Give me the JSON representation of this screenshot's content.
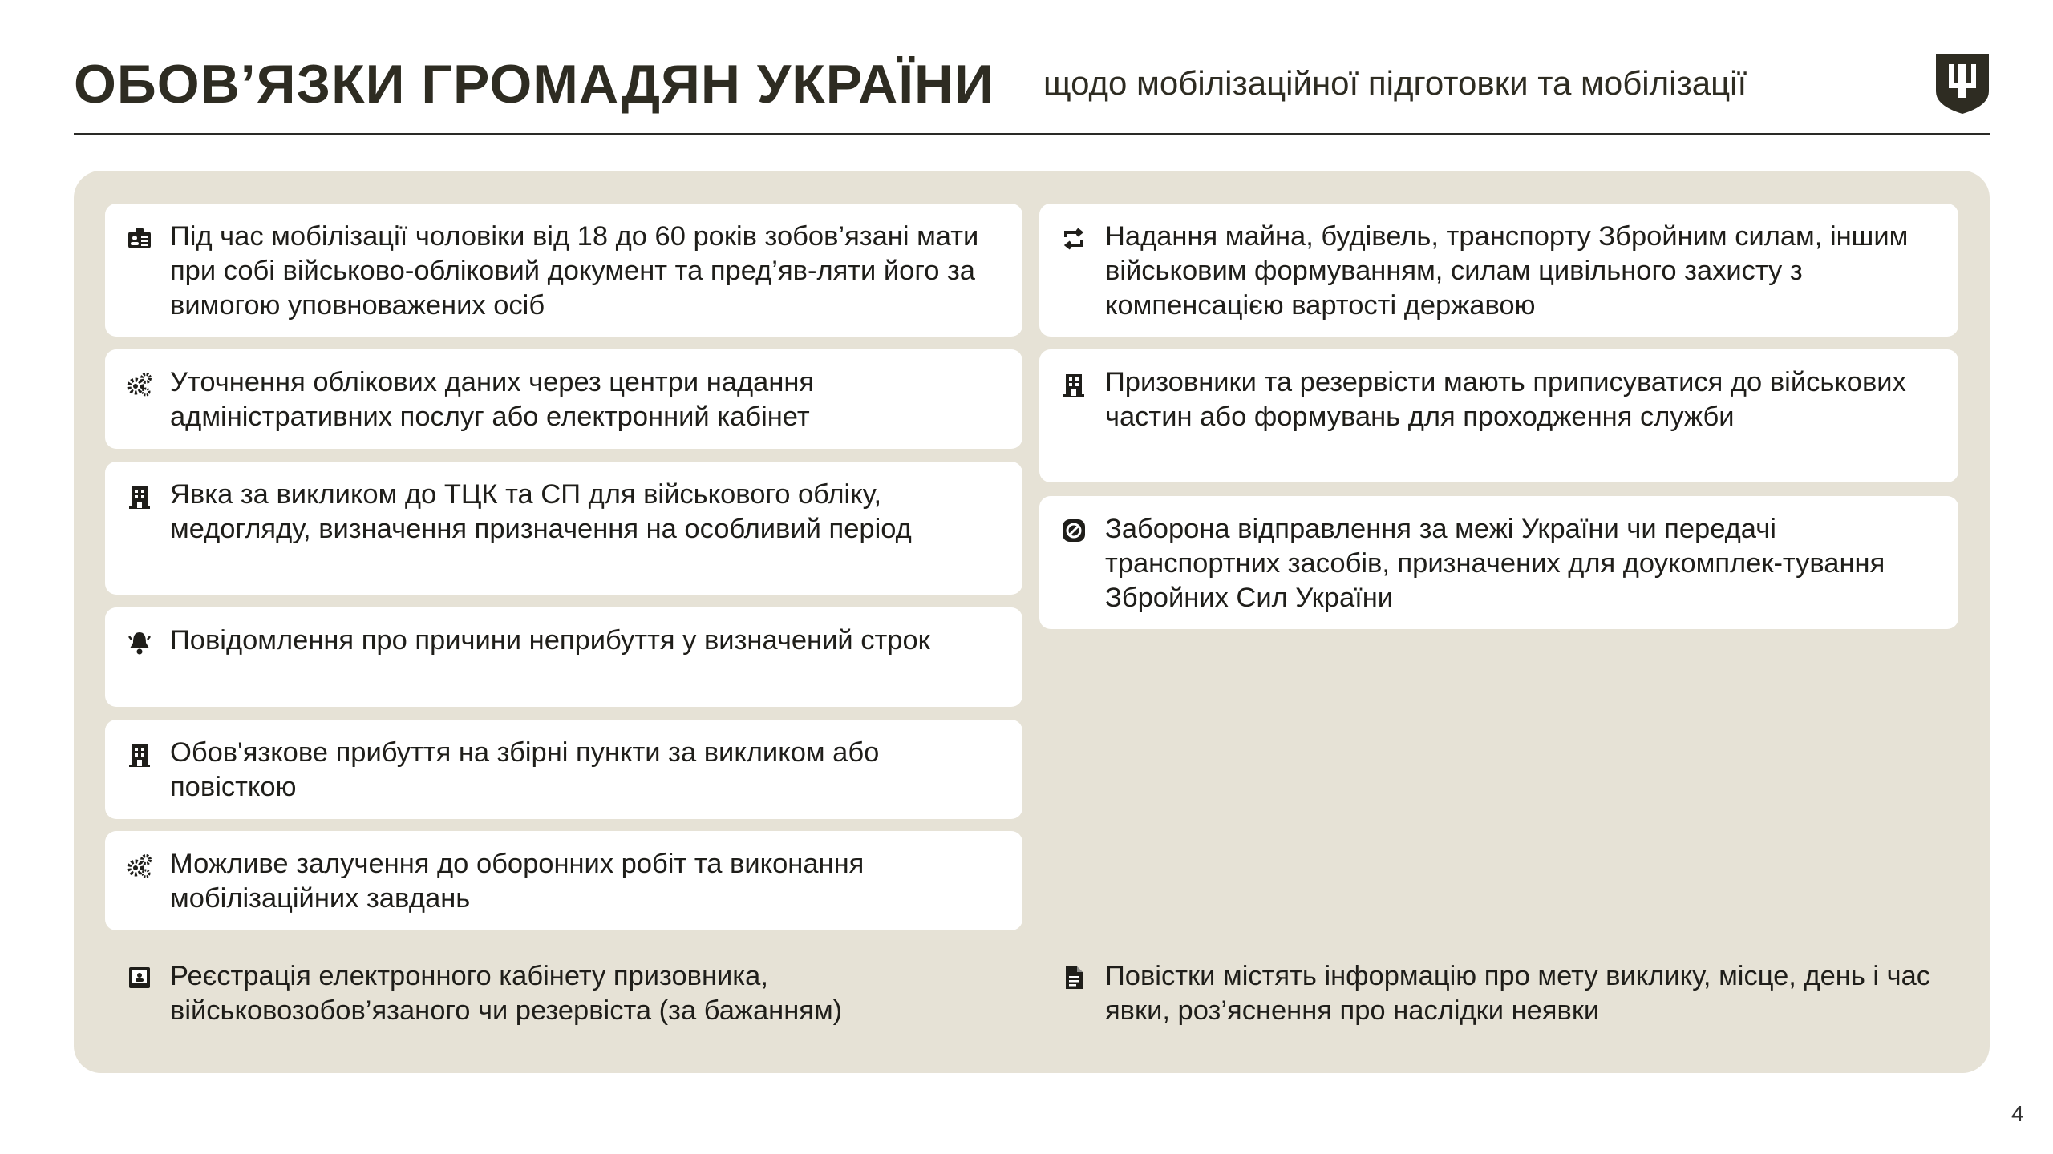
{
  "header": {
    "title": "ОБОВ’ЯЗКИ ГРОМАДЯН УКРАЇНИ",
    "subtitle": "щодо мобілізаційної підготовки та мобілізації",
    "emblem_icon": "trident-shield-icon"
  },
  "colors": {
    "text": "#26251f",
    "panel": "#e6e2d6",
    "card": "#ffffff",
    "emblem": "#2e2c22"
  },
  "left_items": [
    {
      "icon": "id-card-icon",
      "text": "Під час мобілізації чоловіки від 18 до 60 років зобов’язані мати при собі військово-обліковий документ та пред’яв-ляти його за вимогою уповноважених осіб"
    },
    {
      "icon": "gears-icon",
      "text": "Уточнення облікових даних через центри надання адміністративних послуг або електронний кабінет"
    },
    {
      "icon": "building-icon",
      "text": "Явка за викликом до ТЦК та СП для військового обліку, медогляду, визначення призначення на особливий період"
    },
    {
      "icon": "bell-icon",
      "text": "Повідомлення про причини неприбуття у визначений строк"
    },
    {
      "icon": "building-icon",
      "text": "Обов'язкове прибуття на збірні пункти за викликом або повісткою"
    },
    {
      "icon": "gears-icon",
      "text": "Можливе залучення до оборонних робіт та виконання мобілізаційних завдань"
    },
    {
      "icon": "registration-icon",
      "text": "Реєстрація електронного кабінету призовника, військовозобов’язаного чи резервіста (за бажанням)"
    }
  ],
  "right_items": [
    {
      "icon": "exchange-arrows-icon",
      "text": "Надання майна, будівель, транспорту Збройним силам, іншим військовим формуванням, силам цивільного захисту з компенсацією вартості державою"
    },
    {
      "icon": "building-icon",
      "text": "Призовники та резервісти мають приписуватися до військових частин або формувань для проходження служби"
    },
    {
      "icon": "ban-icon",
      "text": "Заборона відправлення за межі України чи передачі транспортних засобів, призначених для доукомплек-тування Збройних Сил України"
    },
    {
      "icon": "document-icon",
      "text": "Повістки містять інформацію про мету виклику, місце, день і час явки, роз’яснення про наслідки неявки"
    }
  ],
  "page_number": "4"
}
